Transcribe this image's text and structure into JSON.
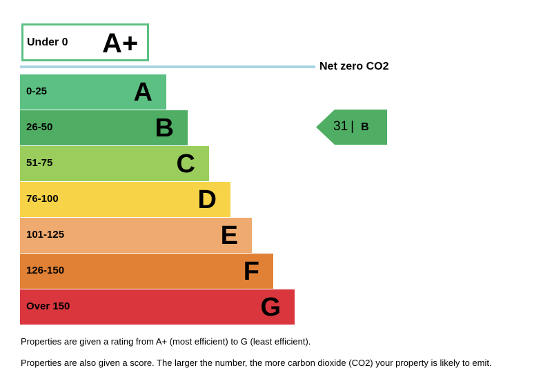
{
  "chart_data": {
    "type": "bar",
    "top_band": {
      "range": "Under 0",
      "letter": "A+",
      "color": "#5cc083"
    },
    "net_zero_label": "Net zero CO2",
    "net_zero_line_color": "#a9d4e3",
    "bands": [
      {
        "range": "0-25",
        "letter": "A",
        "color": "#5cc083"
      },
      {
        "range": "26-50",
        "letter": "B",
        "color": "#4fae64"
      },
      {
        "range": "51-75",
        "letter": "C",
        "color": "#9acd5c"
      },
      {
        "range": "76-100",
        "letter": "D",
        "color": "#f7d447"
      },
      {
        "range": "101-125",
        "letter": "E",
        "color": "#eeaa6f"
      },
      {
        "range": "126-150",
        "letter": "F",
        "color": "#e18135"
      },
      {
        "range": "Over 150",
        "letter": "G",
        "color": "#d9363e"
      }
    ],
    "current": {
      "score": "31",
      "separator": "|",
      "letter": "B",
      "color": "#4fae64"
    }
  },
  "notes": [
    "Properties are given a rating from A+ (most efficient) to G (least efficient).",
    "Properties are also given a score. The larger the number, the more carbon dioxide (CO2) your property is likely to emit."
  ]
}
